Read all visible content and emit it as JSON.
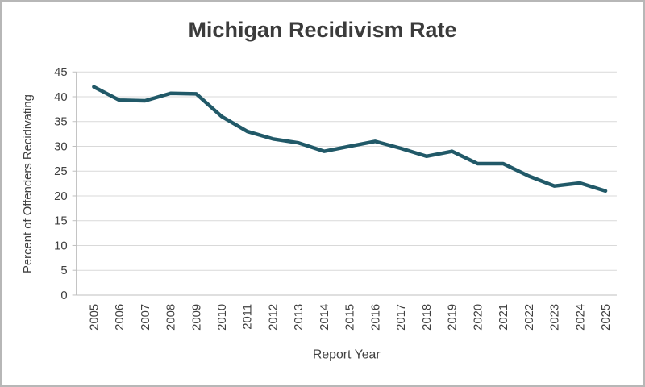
{
  "frame": {
    "border_color": "#b7b7b7",
    "background": "#ffffff"
  },
  "chart_data": {
    "type": "line",
    "title": "Michigan Recidivism Rate",
    "xlabel": "Report Year",
    "ylabel": "Percent of Offenders Recidivating",
    "categories": [
      "2005",
      "2006",
      "2007",
      "2008",
      "2009",
      "2010",
      "2011",
      "2012",
      "2013",
      "2014",
      "2015",
      "2016",
      "2017",
      "2018",
      "2019",
      "2020",
      "2021",
      "2022",
      "2023",
      "2024",
      "2025"
    ],
    "values": [
      42,
      39.3,
      39.2,
      40.7,
      40.6,
      36,
      33,
      31.5,
      30.7,
      29,
      30,
      31,
      29.6,
      28,
      29,
      26.5,
      26.5,
      24,
      22,
      22.6,
      21
    ],
    "ylim": [
      0,
      45
    ],
    "yticks": [
      0,
      5,
      10,
      15,
      20,
      25,
      30,
      35,
      40,
      45
    ],
    "grid": "horizontal",
    "legend": "none",
    "line_color": "#215968",
    "grid_color": "#d9d9d9",
    "axis_color": "#bfbfbf",
    "text_color": "#404040",
    "title_color": "#3b3b3b"
  }
}
